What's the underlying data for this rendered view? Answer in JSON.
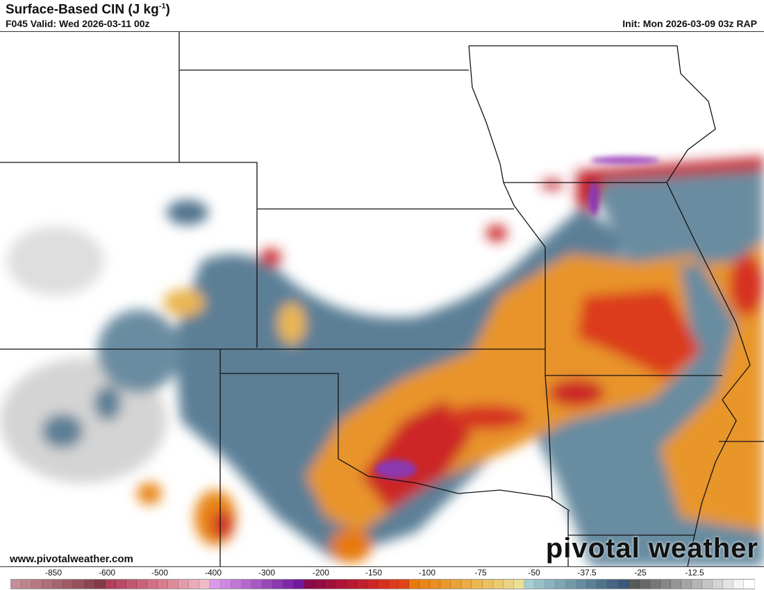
{
  "header": {
    "title": "Surface-Based CIN (J kg",
    "title_sup": "-1",
    "title_close": ")",
    "valid": "F045 Valid: Wed 2026-03-11 00z",
    "init": "Init: Mon 2026-03-09 03z RAP"
  },
  "footer": {
    "website": "www.pivotalweather.com",
    "logo": "pivotal weather"
  },
  "colorbar": {
    "tick_labels": [
      "-850",
      "-600",
      "-500",
      "-400",
      "-300",
      "-200",
      "-150",
      "-100",
      "-75",
      "-50",
      "-37.5",
      "-25",
      "-12.5"
    ],
    "colors": [
      "#c48e96",
      "#bd848c",
      "#b67a83",
      "#ae7079",
      "#a66670",
      "#9e5c66",
      "#95515c",
      "#8c4652",
      "#833b48",
      "#b0405c",
      "#b84c66",
      "#c05870",
      "#c8647a",
      "#d07084",
      "#d87c8e",
      "#de8c9c",
      "#e49caa",
      "#eaacb8",
      "#efbcc6",
      "#da98e8",
      "#cd88df",
      "#c078d6",
      "#b368cd",
      "#a658c3",
      "#9948b9",
      "#8c38af",
      "#7f28a5",
      "#72189b",
      "#8a0a4a",
      "#960c44",
      "#a2103e",
      "#ae1438",
      "#b81a32",
      "#c2202c",
      "#cc2828",
      "#d63022",
      "#dc3a1c",
      "#e04616",
      "#e67a10",
      "#e88418",
      "#ea8e22",
      "#ea982c",
      "#eaa238",
      "#eaac44",
      "#eab652",
      "#eac060",
      "#eaca70",
      "#ead484",
      "#ece096",
      "#a4cdd2",
      "#98c0c8",
      "#8cb3be",
      "#80a6b4",
      "#7499aa",
      "#688ca0",
      "#5c7f96",
      "#50728c",
      "#466682",
      "#3c5a78",
      "#5a5a5a",
      "#686868",
      "#777777",
      "#868686",
      "#959595",
      "#a4a4a4",
      "#b4b4b4",
      "#c4c4c4",
      "#d4d4d4",
      "#e4e4e4",
      "#f4f4f4",
      "#ffffff"
    ]
  }
}
